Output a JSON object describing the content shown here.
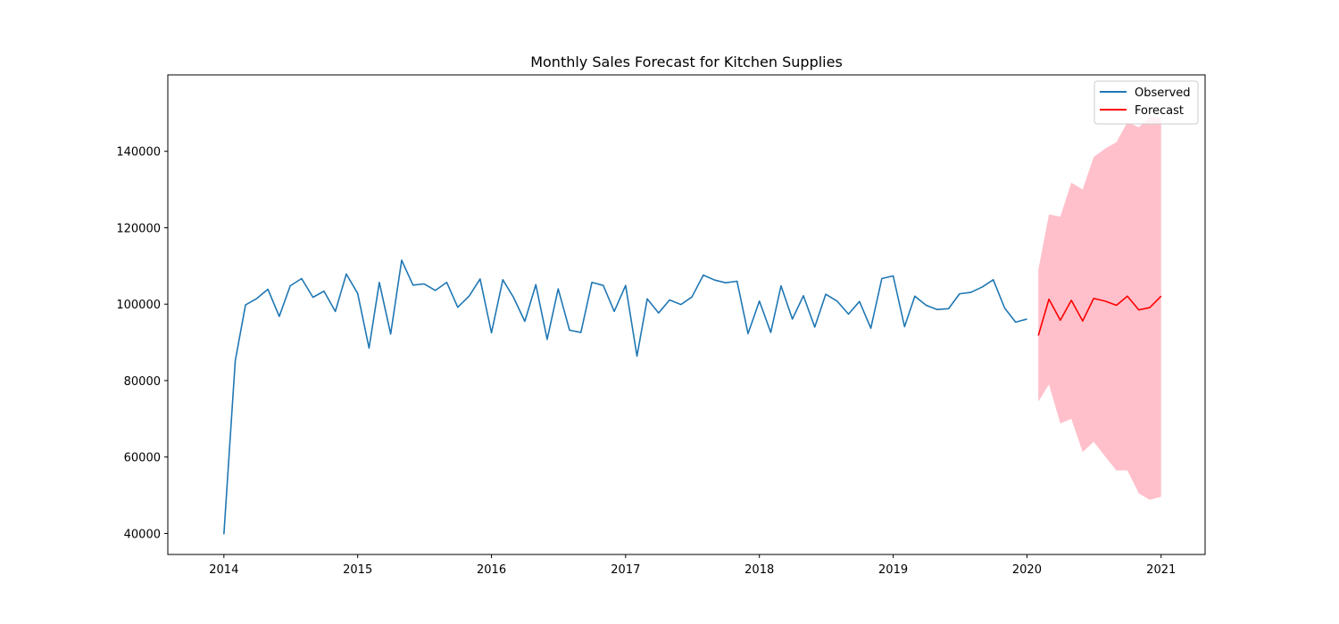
{
  "chart_data": {
    "type": "line",
    "title": "Monthly Sales Forecast for Kitchen Supplies",
    "xlabel": "",
    "ylabel": "",
    "grid": false,
    "legend_placement": "top-right",
    "xlim": [
      "2013-08-01",
      "2021-05-01"
    ],
    "ylim": [
      34500,
      160000
    ],
    "x_ticks": [
      "2014",
      "2015",
      "2016",
      "2017",
      "2018",
      "2019",
      "2020",
      "2021"
    ],
    "y_ticks": [
      40000,
      60000,
      80000,
      100000,
      120000,
      140000
    ],
    "series": [
      {
        "name": "Observed",
        "color": "#1f77b4",
        "x": [
          "2014-01",
          "2014-02",
          "2014-03",
          "2014-04",
          "2014-05",
          "2014-06",
          "2014-07",
          "2014-08",
          "2014-09",
          "2014-10",
          "2014-11",
          "2014-12",
          "2015-01",
          "2015-02",
          "2015-03",
          "2015-04",
          "2015-05",
          "2015-06",
          "2015-07",
          "2015-08",
          "2015-09",
          "2015-10",
          "2015-11",
          "2015-12",
          "2016-01",
          "2016-02",
          "2016-03",
          "2016-04",
          "2016-05",
          "2016-06",
          "2016-07",
          "2016-08",
          "2016-09",
          "2016-10",
          "2016-11",
          "2016-12",
          "2017-01",
          "2017-02",
          "2017-03",
          "2017-04",
          "2017-05",
          "2017-06",
          "2017-07",
          "2017-08",
          "2017-09",
          "2017-10",
          "2017-11",
          "2017-12",
          "2018-01",
          "2018-02",
          "2018-03",
          "2018-04",
          "2018-05",
          "2018-06",
          "2018-07",
          "2018-08",
          "2018-09",
          "2018-10",
          "2018-11",
          "2018-12",
          "2019-01",
          "2019-02",
          "2019-03",
          "2019-04",
          "2019-05",
          "2019-06",
          "2019-07",
          "2019-08",
          "2019-09",
          "2019-10",
          "2019-11",
          "2019-12",
          "2020-01"
        ],
        "values": [
          39800,
          85200,
          99800,
          101500,
          103900,
          96800,
          104800,
          106700,
          101800,
          103400,
          98100,
          107900,
          102800,
          88500,
          105700,
          92200,
          111500,
          105000,
          105300,
          103600,
          105700,
          99200,
          102100,
          106600,
          92500,
          106400,
          101800,
          95500,
          105100,
          90800,
          104000,
          93200,
          92600,
          105700,
          104900,
          98100,
          104900,
          86400,
          101400,
          97700,
          101100,
          99900,
          101900,
          107600,
          106300,
          105600,
          106000,
          92300,
          100800,
          92600,
          104800,
          96100,
          102200,
          94000,
          102600,
          100800,
          97400,
          100700,
          93700,
          106700,
          107400,
          94100,
          102100,
          99700,
          98600,
          98800,
          102700,
          103100,
          104500,
          106400,
          99000,
          95300,
          96100
        ]
      },
      {
        "name": "Forecast",
        "color": "#ff0000",
        "x": [
          "2020-02",
          "2020-03",
          "2020-04",
          "2020-05",
          "2020-06",
          "2020-07",
          "2020-08",
          "2020-09",
          "2020-10",
          "2020-11",
          "2020-12",
          "2021-01"
        ],
        "values": [
          91800,
          101300,
          95800,
          101000,
          95600,
          101500,
          100800,
          99700,
          102100,
          98500,
          99100,
          102100
        ],
        "lower": [
          74500,
          79000,
          68800,
          70000,
          61300,
          64000,
          60200,
          56500,
          56500,
          50500,
          48800,
          49600
        ],
        "upper": [
          109000,
          123500,
          122900,
          131800,
          130000,
          138500,
          140700,
          142400,
          147600,
          146300,
          149000,
          148800
        ],
        "interval_color": "#ffc0cb"
      }
    ]
  }
}
